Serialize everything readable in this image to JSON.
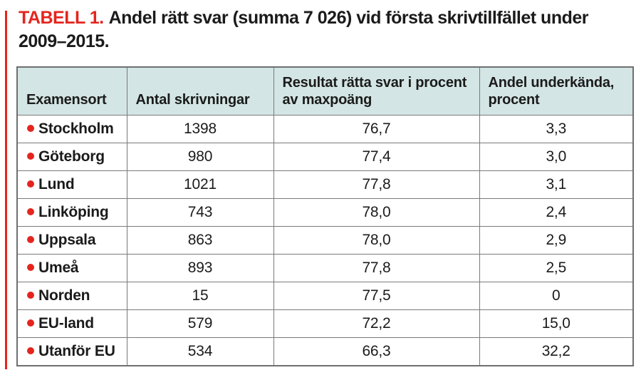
{
  "caption": {
    "label": "TABELL 1.",
    "line1": "Andel rätt svar (summa 7 026) vid första skrivtillfället under",
    "line2": "2009–2015."
  },
  "colors": {
    "accent_red": "#e4251e",
    "header_bg": "#d3e5e4",
    "border_gray": "#7a7a7a",
    "text": "#1b1b1b"
  },
  "table": {
    "columns": [
      "Examensort",
      "Antal skrivningar",
      "Resultat rätta svar i procent av maxpoäng",
      "Andel underkända, procent"
    ],
    "rows": [
      {
        "ort": "Stockholm",
        "antal": "1398",
        "resultat": "76,7",
        "underkanda": "3,3"
      },
      {
        "ort": "Göteborg",
        "antal": "980",
        "resultat": "77,4",
        "underkanda": "3,0"
      },
      {
        "ort": "Lund",
        "antal": "1021",
        "resultat": "77,8",
        "underkanda": "3,1"
      },
      {
        "ort": "Linköping",
        "antal": "743",
        "resultat": "78,0",
        "underkanda": "2,4"
      },
      {
        "ort": "Uppsala",
        "antal": "863",
        "resultat": "78,0",
        "underkanda": "2,9"
      },
      {
        "ort": "Umeå",
        "antal": "893",
        "resultat": "77,8",
        "underkanda": "2,5"
      },
      {
        "ort": "Norden",
        "antal": "15",
        "resultat": "77,5",
        "underkanda": "0"
      },
      {
        "ort": "EU-land",
        "antal": "579",
        "resultat": "72,2",
        "underkanda": "15,0"
      },
      {
        "ort": "Utanför EU",
        "antal": "534",
        "resultat": "66,3",
        "underkanda": "32,2"
      }
    ]
  },
  "chart_data": {
    "type": "table",
    "title": "TABELL 1. Andel rätt svar (summa 7 026) vid första skrivtillfället under 2009–2015.",
    "columns": [
      "Examensort",
      "Antal skrivningar",
      "Resultat rätta svar i procent av maxpoäng",
      "Andel underkända, procent"
    ],
    "rows": [
      [
        "Stockholm",
        1398,
        76.7,
        3.3
      ],
      [
        "Göteborg",
        980,
        77.4,
        3.0
      ],
      [
        "Lund",
        1021,
        77.8,
        3.1
      ],
      [
        "Linköping",
        743,
        78.0,
        2.4
      ],
      [
        "Uppsala",
        863,
        78.0,
        2.9
      ],
      [
        "Umeå",
        893,
        77.8,
        2.5
      ],
      [
        "Norden",
        15,
        77.5,
        0
      ],
      [
        "EU-land",
        579,
        72.2,
        15.0
      ],
      [
        "Utanför EU",
        534,
        66.3,
        32.2
      ]
    ]
  }
}
